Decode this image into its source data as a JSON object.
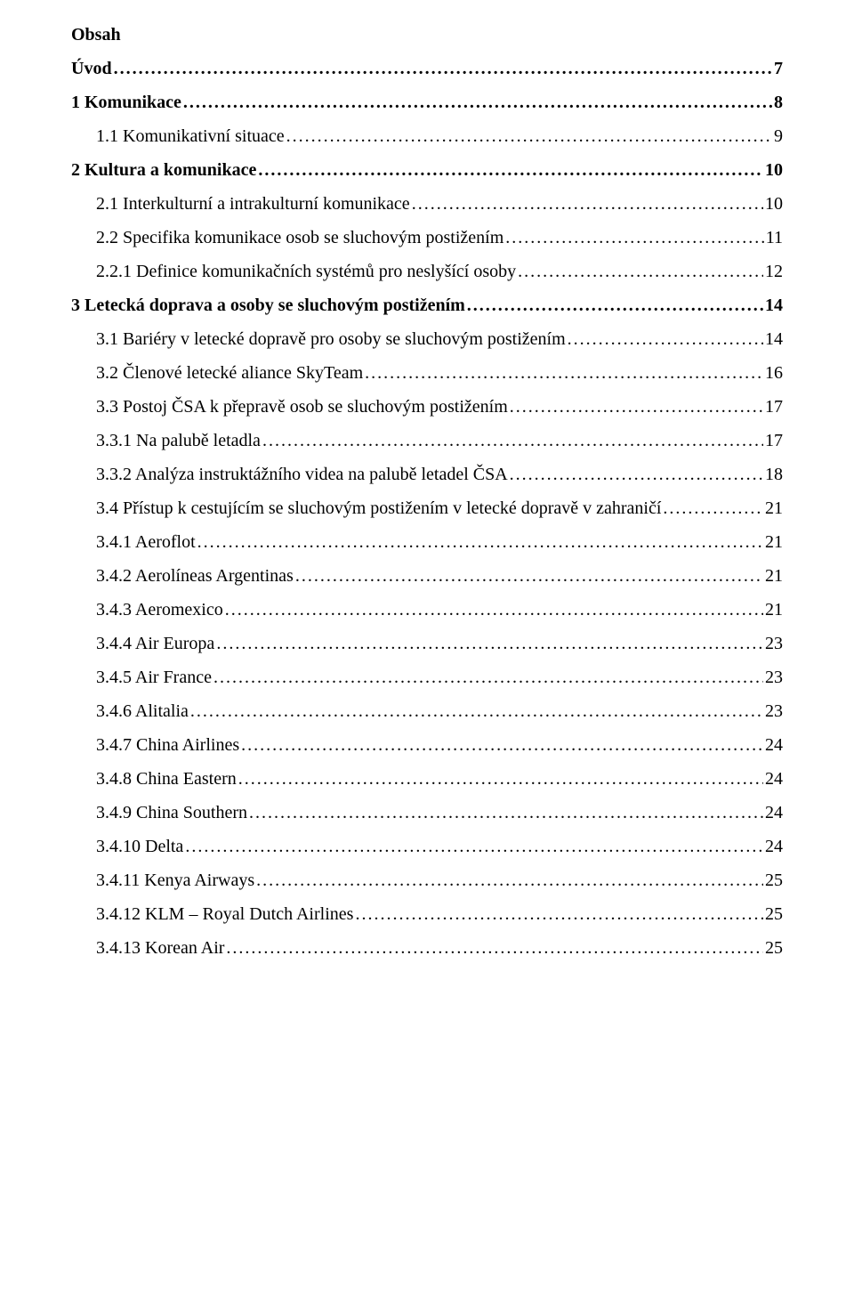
{
  "heading": "Obsah",
  "toc": [
    {
      "label": "Úvod",
      "page": "7",
      "bold": true,
      "indent": 0
    },
    {
      "label": "1 Komunikace",
      "page": "8",
      "bold": true,
      "indent": 0
    },
    {
      "label": "1.1 Komunikativní situace",
      "page": "9",
      "bold": false,
      "indent": 1
    },
    {
      "label": "2 Kultura a komunikace",
      "page": "10",
      "bold": true,
      "indent": 0
    },
    {
      "label": "2.1 Interkulturní a intrakulturní komunikace",
      "page": "10",
      "bold": false,
      "indent": 1
    },
    {
      "label": "2.2 Specifika komunikace osob se sluchovým postižením",
      "page": "11",
      "bold": false,
      "indent": 1
    },
    {
      "label": "2.2.1 Definice komunikačních systémů pro neslyšící osoby",
      "page": "12",
      "bold": false,
      "indent": 1
    },
    {
      "label": "3 Letecká doprava a osoby se sluchovým postižením",
      "page": "14",
      "bold": true,
      "indent": 0
    },
    {
      "label": "3.1 Bariéry v letecké dopravě pro osoby se sluchovým postižením",
      "page": "14",
      "bold": false,
      "indent": 1
    },
    {
      "label": "3.2 Členové letecké aliance SkyTeam",
      "page": "16",
      "bold": false,
      "indent": 1
    },
    {
      "label": "3.3 Postoj ČSA k přepravě osob se sluchovým postižením",
      "page": "17",
      "bold": false,
      "indent": 1
    },
    {
      "label": "3.3.1 Na palubě letadla",
      "page": "17",
      "bold": false,
      "indent": 1
    },
    {
      "label": "3.3.2 Analýza instruktážního videa na palubě letadel ČSA",
      "page": "18",
      "bold": false,
      "indent": 1
    },
    {
      "label": "3.4 Přístup k cestujícím se sluchovým postižením v letecké dopravě v zahraničí",
      "page": "21",
      "bold": false,
      "indent": 1
    },
    {
      "label": "3.4.1 Aeroflot",
      "page": "21",
      "bold": false,
      "indent": 1
    },
    {
      "label": "3.4.2 Aerolíneas Argentinas",
      "page": "21",
      "bold": false,
      "indent": 1
    },
    {
      "label": "3.4.3 Aeromexico",
      "page": "21",
      "bold": false,
      "indent": 1
    },
    {
      "label": "3.4.4 Air Europa",
      "page": "23",
      "bold": false,
      "indent": 1
    },
    {
      "label": "3.4.5 Air France",
      "page": "23",
      "bold": false,
      "indent": 1
    },
    {
      "label": "3.4.6 Alitalia",
      "page": "23",
      "bold": false,
      "indent": 1
    },
    {
      "label": "3.4.7 China Airlines",
      "page": "24",
      "bold": false,
      "indent": 1
    },
    {
      "label": "3.4.8 China Eastern",
      "page": "24",
      "bold": false,
      "indent": 1
    },
    {
      "label": "3.4.9 China Southern",
      "page": "24",
      "bold": false,
      "indent": 1
    },
    {
      "label": "3.4.10 Delta",
      "page": "24",
      "bold": false,
      "indent": 1
    },
    {
      "label": "3.4.11 Kenya Airways",
      "page": "25",
      "bold": false,
      "indent": 1
    },
    {
      "label": "3.4.12 KLM – Royal Dutch Airlines",
      "page": "25",
      "bold": false,
      "indent": 1
    },
    {
      "label": "3.4.13 Korean Air",
      "page": "25",
      "bold": false,
      "indent": 1
    }
  ]
}
